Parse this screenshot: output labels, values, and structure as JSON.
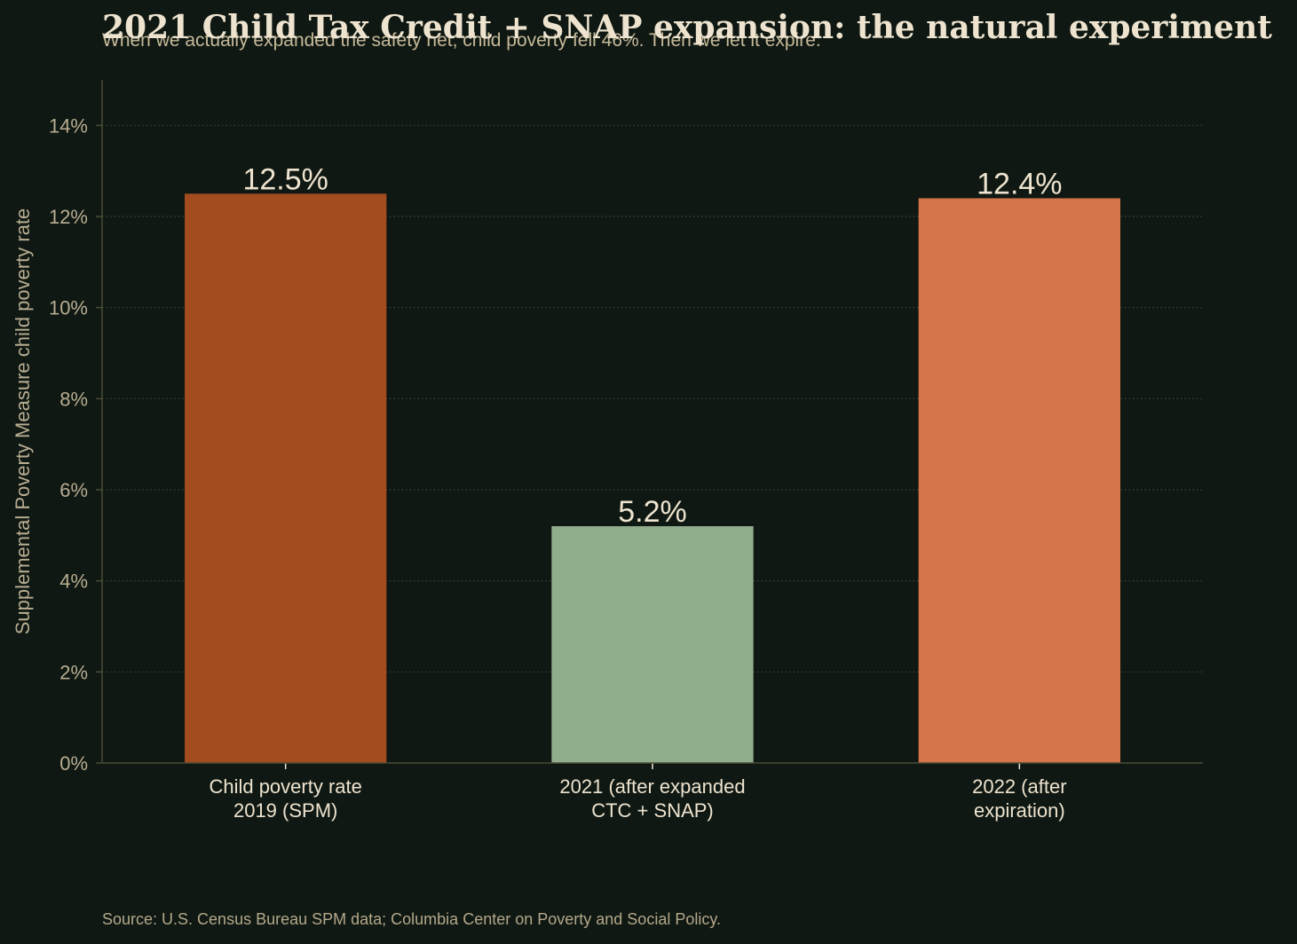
{
  "chart_data": {
    "type": "bar",
    "title": "2021 Child Tax Credit + SNAP expansion: the natural experiment",
    "subtitle": "When we actually expanded the safety net, child poverty fell 46%. Then we let it expire.",
    "source": "Source: U.S. Census Bureau SPM data; Columbia Center on Poverty and Social Policy.",
    "xlabel": "",
    "ylabel": "Supplemental Poverty Measure child poverty rate",
    "categories": [
      [
        "Child poverty rate",
        "2019 (SPM)"
      ],
      [
        "2021 (after expanded",
        "CTC + SNAP)"
      ],
      [
        "2022 (after",
        "expiration)"
      ]
    ],
    "values": [
      12.5,
      5.2,
      12.4
    ],
    "value_labels": [
      "12.5%",
      "5.2%",
      "12.4%"
    ],
    "bar_colors": [
      "#a34c1f",
      "#90ad8c",
      "#d4744a"
    ],
    "ylim": [
      0,
      15
    ],
    "yticks": [
      0,
      2,
      4,
      6,
      8,
      10,
      12,
      14
    ],
    "ytick_labels": [
      "0%",
      "2%",
      "4%",
      "6%",
      "8%",
      "10%",
      "12%",
      "14%"
    ],
    "grid": "horizontal dotted",
    "colors": {
      "background": "#0f1812",
      "axis": "#4a4a35",
      "grid": "#3b4a3c",
      "tick_text": "#b8ad92",
      "category_text": "#ede3cf",
      "value_text": "#ede3cf"
    }
  }
}
